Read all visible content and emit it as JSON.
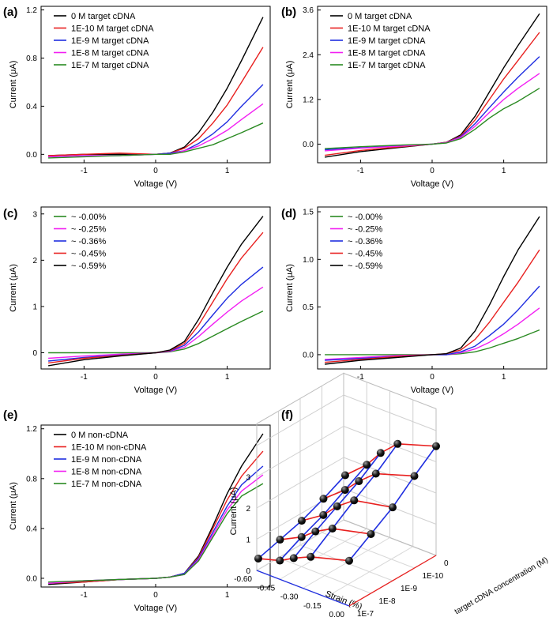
{
  "figure": {
    "colors": {
      "black": "#000000",
      "red": "#e8201f",
      "blue": "#1f2ee0",
      "magenta": "#f21ff2",
      "green": "#2a8a22",
      "frame": "#000000"
    }
  },
  "chart_data": [
    {
      "panel": "(a)",
      "type": "line",
      "xlabel": "Voltage (V)",
      "ylabel": "Current (μA)",
      "xlim": [
        -1.6,
        1.6
      ],
      "ylim": [
        -0.07,
        1.23
      ],
      "xticks": [
        -1,
        0,
        1
      ],
      "xtick_labels": [
        "-1",
        "0",
        "1"
      ],
      "yticks": [
        0.0,
        0.4,
        0.8,
        1.2
      ],
      "ytick_labels": [
        "0.0",
        "0.4",
        "0.8",
        "1.2"
      ],
      "legend_position": "top-left",
      "x": [
        -1.5,
        -1.0,
        -0.5,
        0.0,
        0.2,
        0.4,
        0.6,
        0.8,
        1.0,
        1.2,
        1.5
      ],
      "series": [
        {
          "name": "0 M target cDNA",
          "color": "black",
          "values": [
            -0.01,
            0.0,
            0.0,
            0.0,
            0.01,
            0.06,
            0.18,
            0.35,
            0.55,
            0.78,
            1.14
          ]
        },
        {
          "name": "1E-10 M target cDNA",
          "color": "red",
          "values": [
            -0.01,
            0.0,
            0.01,
            0.0,
            0.01,
            0.05,
            0.13,
            0.26,
            0.41,
            0.6,
            0.89
          ]
        },
        {
          "name": "1E-9 M target cDNA",
          "color": "blue",
          "values": [
            -0.02,
            -0.01,
            -0.01,
            0.0,
            0.01,
            0.03,
            0.09,
            0.17,
            0.27,
            0.4,
            0.58
          ]
        },
        {
          "name": "1E-8 M target cDNA",
          "color": "magenta",
          "values": [
            -0.02,
            -0.01,
            -0.01,
            0.0,
            0.0,
            0.03,
            0.07,
            0.13,
            0.2,
            0.29,
            0.42
          ]
        },
        {
          "name": "1E-7 M target cDNA",
          "color": "green",
          "values": [
            -0.03,
            -0.02,
            -0.01,
            0.0,
            0.0,
            0.02,
            0.05,
            0.08,
            0.13,
            0.18,
            0.26
          ]
        }
      ]
    },
    {
      "panel": "(b)",
      "type": "line",
      "xlabel": "Voltage (V)",
      "ylabel": "Current (μA)",
      "xlim": [
        -1.6,
        1.6
      ],
      "ylim": [
        -0.5,
        3.7
      ],
      "xticks": [
        -1,
        0,
        1
      ],
      "xtick_labels": [
        "-1",
        "0",
        "1"
      ],
      "yticks": [
        0.0,
        1.2,
        2.4,
        3.6
      ],
      "ytick_labels": [
        "0.0",
        "1.2",
        "2.4",
        "3.6"
      ],
      "legend_position": "top-left",
      "x": [
        -1.5,
        -1.0,
        -0.5,
        0.0,
        0.2,
        0.4,
        0.6,
        0.8,
        1.0,
        1.2,
        1.5
      ],
      "series": [
        {
          "name": "0 M target cDNA",
          "color": "black",
          "values": [
            -0.35,
            -0.2,
            -0.1,
            0.0,
            0.05,
            0.25,
            0.75,
            1.4,
            2.05,
            2.65,
            3.5
          ]
        },
        {
          "name": "1E-10 M target cDNA",
          "color": "red",
          "values": [
            -0.3,
            -0.17,
            -0.08,
            0.0,
            0.05,
            0.22,
            0.65,
            1.2,
            1.75,
            2.25,
            3.0
          ]
        },
        {
          "name": "1E-9 M target cDNA",
          "color": "blue",
          "values": [
            -0.15,
            -0.1,
            -0.05,
            0.0,
            0.04,
            0.2,
            0.55,
            0.98,
            1.4,
            1.8,
            2.35
          ]
        },
        {
          "name": "1E-8 M target cDNA",
          "color": "magenta",
          "values": [
            -0.18,
            -0.11,
            -0.06,
            0.0,
            0.04,
            0.18,
            0.48,
            0.85,
            1.2,
            1.5,
            1.9
          ]
        },
        {
          "name": "1E-7 M target cDNA",
          "color": "green",
          "values": [
            -0.12,
            -0.07,
            -0.03,
            0.0,
            0.03,
            0.15,
            0.4,
            0.7,
            0.95,
            1.15,
            1.5
          ]
        }
      ]
    },
    {
      "panel": "(c)",
      "type": "line",
      "xlabel": "Voltage (V)",
      "ylabel": "Current (μA)",
      "xlim": [
        -1.6,
        1.6
      ],
      "ylim": [
        -0.35,
        3.15
      ],
      "xticks": [
        -1,
        0,
        1
      ],
      "xtick_labels": [
        "-1",
        "0",
        "1"
      ],
      "yticks": [
        0,
        1,
        2,
        3
      ],
      "ytick_labels": [
        "0",
        "1",
        "2",
        "3"
      ],
      "legend_position": "top-left",
      "x": [
        -1.5,
        -1.0,
        -0.5,
        0.0,
        0.2,
        0.4,
        0.6,
        0.8,
        1.0,
        1.2,
        1.5
      ],
      "series": [
        {
          "name": "~ -0.00%",
          "color": "green",
          "values": [
            0.0,
            0.0,
            0.0,
            0.0,
            0.02,
            0.08,
            0.2,
            0.36,
            0.52,
            0.68,
            0.9
          ]
        },
        {
          "name": "~ -0.25%",
          "color": "magenta",
          "values": [
            -0.12,
            -0.07,
            -0.03,
            0.0,
            0.03,
            0.12,
            0.35,
            0.62,
            0.88,
            1.12,
            1.42
          ]
        },
        {
          "name": "~ -0.36%",
          "color": "blue",
          "values": [
            -0.18,
            -0.1,
            -0.05,
            0.0,
            0.04,
            0.16,
            0.45,
            0.82,
            1.18,
            1.48,
            1.85
          ]
        },
        {
          "name": "~ -0.45%",
          "color": "red",
          "values": [
            -0.22,
            -0.12,
            -0.06,
            0.0,
            0.05,
            0.2,
            0.6,
            1.1,
            1.6,
            2.05,
            2.6
          ]
        },
        {
          "name": "~ -0.59%",
          "color": "black",
          "values": [
            -0.28,
            -0.15,
            -0.07,
            0.0,
            0.06,
            0.24,
            0.72,
            1.3,
            1.85,
            2.35,
            2.95
          ]
        }
      ]
    },
    {
      "panel": "(d)",
      "type": "line",
      "xlabel": "Voltage (V)",
      "ylabel": "Current (μA)",
      "xlim": [
        -1.6,
        1.6
      ],
      "ylim": [
        -0.15,
        1.55
      ],
      "xticks": [
        -1,
        0,
        1
      ],
      "xtick_labels": [
        "-1",
        "0",
        "1"
      ],
      "yticks": [
        0.0,
        0.5,
        1.0,
        1.5
      ],
      "ytick_labels": [
        "0.0",
        "0.5",
        "1.0",
        "1.5"
      ],
      "legend_position": "top-left",
      "x": [
        -1.5,
        -1.0,
        -0.5,
        0.0,
        0.2,
        0.4,
        0.6,
        0.8,
        1.0,
        1.2,
        1.5
      ],
      "series": [
        {
          "name": "~ -0.00%",
          "color": "green",
          "values": [
            0.0,
            0.0,
            0.0,
            0.0,
            0.0,
            0.01,
            0.03,
            0.07,
            0.12,
            0.17,
            0.26
          ]
        },
        {
          "name": "~ -0.25%",
          "color": "magenta",
          "values": [
            -0.05,
            -0.03,
            -0.01,
            0.0,
            0.0,
            0.02,
            0.06,
            0.13,
            0.22,
            0.32,
            0.49
          ]
        },
        {
          "name": "~ -0.36%",
          "color": "blue",
          "values": [
            -0.06,
            -0.04,
            -0.02,
            0.0,
            0.0,
            0.03,
            0.09,
            0.2,
            0.32,
            0.47,
            0.72
          ]
        },
        {
          "name": "~ -0.45%",
          "color": "red",
          "values": [
            -0.08,
            -0.05,
            -0.02,
            0.0,
            0.01,
            0.05,
            0.16,
            0.34,
            0.55,
            0.76,
            1.1
          ]
        },
        {
          "name": "~ -0.59%",
          "color": "black",
          "values": [
            -0.1,
            -0.06,
            -0.03,
            0.0,
            0.01,
            0.07,
            0.25,
            0.52,
            0.82,
            1.1,
            1.45
          ]
        }
      ]
    },
    {
      "panel": "(e)",
      "type": "line",
      "xlabel": "Voltage (V)",
      "ylabel": "Current (μA)",
      "xlim": [
        -1.6,
        1.6
      ],
      "ylim": [
        -0.07,
        1.23
      ],
      "xticks": [
        -1,
        0,
        1
      ],
      "xtick_labels": [
        "-1",
        "0",
        "1"
      ],
      "yticks": [
        0.0,
        0.4,
        0.8,
        1.2
      ],
      "ytick_labels": [
        "0.0",
        "0.4",
        "0.8",
        "1.2"
      ],
      "legend_position": "top-left",
      "x": [
        -1.5,
        -1.0,
        -0.5,
        0.0,
        0.2,
        0.4,
        0.6,
        0.8,
        1.0,
        1.2,
        1.5
      ],
      "series": [
        {
          "name": "0 M non-cDNA",
          "color": "black",
          "values": [
            -0.05,
            -0.03,
            -0.01,
            0.0,
            0.01,
            0.04,
            0.18,
            0.42,
            0.68,
            0.9,
            1.16
          ]
        },
        {
          "name": "1E-10 M non-cDNA",
          "color": "red",
          "values": [
            -0.04,
            -0.03,
            -0.01,
            0.0,
            0.01,
            0.04,
            0.17,
            0.4,
            0.63,
            0.82,
            1.02
          ]
        },
        {
          "name": "1E-9 M non-cDNA",
          "color": "blue",
          "values": [
            -0.04,
            -0.02,
            -0.01,
            0.0,
            0.01,
            0.04,
            0.16,
            0.37,
            0.58,
            0.75,
            0.9
          ]
        },
        {
          "name": "1E-8 M non-cDNA",
          "color": "magenta",
          "values": [
            -0.04,
            -0.02,
            -0.01,
            0.0,
            0.01,
            0.03,
            0.15,
            0.35,
            0.55,
            0.7,
            0.83
          ]
        },
        {
          "name": "1E-7 M non-cDNA",
          "color": "green",
          "values": [
            -0.03,
            -0.02,
            -0.01,
            0.0,
            0.01,
            0.03,
            0.14,
            0.33,
            0.52,
            0.66,
            0.76
          ]
        }
      ]
    },
    {
      "panel": "(f)",
      "type": "scatter3d",
      "zlabel": "Current (μA)",
      "xlabel": "Strain (%)",
      "ylabel": "target cDNA concentration (M)",
      "zticks": [
        0,
        1,
        2,
        3
      ],
      "ztick_labels": [
        "0",
        "1",
        "2",
        "3"
      ],
      "strain_ticks": [
        "-0.60",
        "-0.45",
        "-0.30",
        "-0.15",
        "0.00"
      ],
      "conc_ticks": [
        "0",
        "1E-10",
        "1E-9",
        "1E-8",
        "1E-7"
      ],
      "strain_values": [
        -0.59,
        -0.45,
        -0.36,
        -0.25,
        0.0
      ],
      "conc_values": [
        "0",
        "1E-10",
        "1E-9",
        "1E-8",
        "1E-7"
      ],
      "current": [
        [
          1.45,
          1.1,
          0.8,
          0.6,
          0.4
        ],
        [
          2.05,
          1.65,
          1.25,
          0.95,
          0.6
        ],
        [
          2.6,
          2.1,
          1.7,
          1.3,
          0.85
        ],
        [
          3.1,
          2.55,
          2.1,
          1.6,
          1.1
        ],
        [
          3.5,
          2.95,
          2.35,
          1.9,
          1.45
        ]
      ],
      "line_colors": {
        "along_strain": "red",
        "along_conc": "blue"
      }
    }
  ]
}
